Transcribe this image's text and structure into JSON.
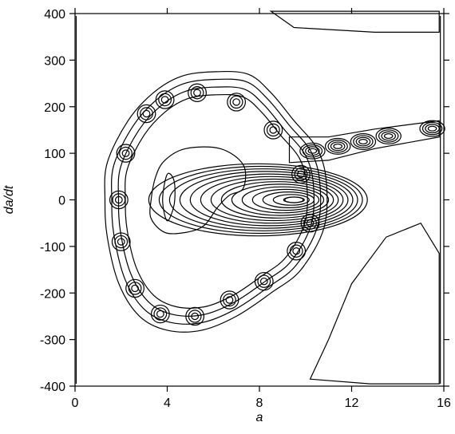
{
  "chart_data": {
    "type": "contour",
    "xlabel": "a",
    "ylabel": "da/dt",
    "xlim": [
      0,
      16
    ],
    "ylim": [
      -400,
      400
    ],
    "x_ticks": [
      0,
      4,
      8,
      12,
      16
    ],
    "y_ticks": [
      400,
      300,
      200,
      100,
      0,
      -100,
      -200,
      -300,
      -400
    ],
    "x_tick_labels": [
      "0",
      "4",
      "8",
      "12",
      "16"
    ],
    "y_tick_labels": [
      "400",
      "300",
      "200",
      "100",
      "0",
      "-100",
      "-200",
      "-300",
      "-400"
    ],
    "grid": false,
    "line_color": "#000000",
    "features": {
      "core_peak": [
        9.5,
        0
      ],
      "tail_blobs": [
        {
          "x": 10.3,
          "y": 105
        },
        {
          "x": 11.4,
          "y": 115
        },
        {
          "x": 12.5,
          "y": 125
        },
        {
          "x": 13.6,
          "y": 137
        },
        {
          "x": 15.5,
          "y": 153
        }
      ],
      "outer_ring_points": [
        [
          1.4,
          80
        ],
        [
          1.3,
          0
        ],
        [
          1.4,
          -80
        ],
        [
          1.9,
          -180
        ],
        [
          2.8,
          -250
        ],
        [
          4.0,
          -280
        ],
        [
          5.5,
          -280
        ],
        [
          7.0,
          -250
        ],
        [
          8.5,
          -200
        ],
        [
          9.8,
          -150
        ],
        [
          10.8,
          -60
        ],
        [
          10.9,
          40
        ],
        [
          10.5,
          110
        ],
        [
          9.5,
          170
        ],
        [
          8.5,
          230
        ],
        [
          7.5,
          270
        ],
        [
          6.0,
          275
        ],
        [
          4.6,
          265
        ],
        [
          3.4,
          230
        ],
        [
          2.3,
          170
        ]
      ],
      "inner_loop_points": [
        [
          3.5,
          50
        ],
        [
          3.3,
          0
        ],
        [
          3.3,
          -40
        ],
        [
          3.9,
          -70
        ],
        [
          4.8,
          -70
        ],
        [
          5.6,
          -55
        ],
        [
          6.2,
          -15
        ],
        [
          6.7,
          10
        ],
        [
          7.3,
          25
        ],
        [
          7.3,
          75
        ],
        [
          6.3,
          110
        ],
        [
          4.8,
          110
        ],
        [
          3.9,
          85
        ]
      ],
      "cavity_points": [
        [
          4.0,
          55
        ],
        [
          3.8,
          0
        ],
        [
          4.0,
          -45
        ],
        [
          4.3,
          -10
        ],
        [
          4.3,
          40
        ]
      ],
      "upper_wedge_points": [
        [
          8.5,
          405
        ],
        [
          15.8,
          405
        ],
        [
          15.8,
          360
        ],
        [
          13.0,
          360
        ],
        [
          9.5,
          370
        ]
      ],
      "lower_wedge_points": [
        [
          10.2,
          -385
        ],
        [
          12.8,
          -395
        ],
        [
          15.8,
          -395
        ],
        [
          15.8,
          -115
        ],
        [
          15.0,
          -50
        ],
        [
          13.5,
          -80
        ],
        [
          12.0,
          -180
        ],
        [
          11.0,
          -300
        ]
      ]
    }
  }
}
